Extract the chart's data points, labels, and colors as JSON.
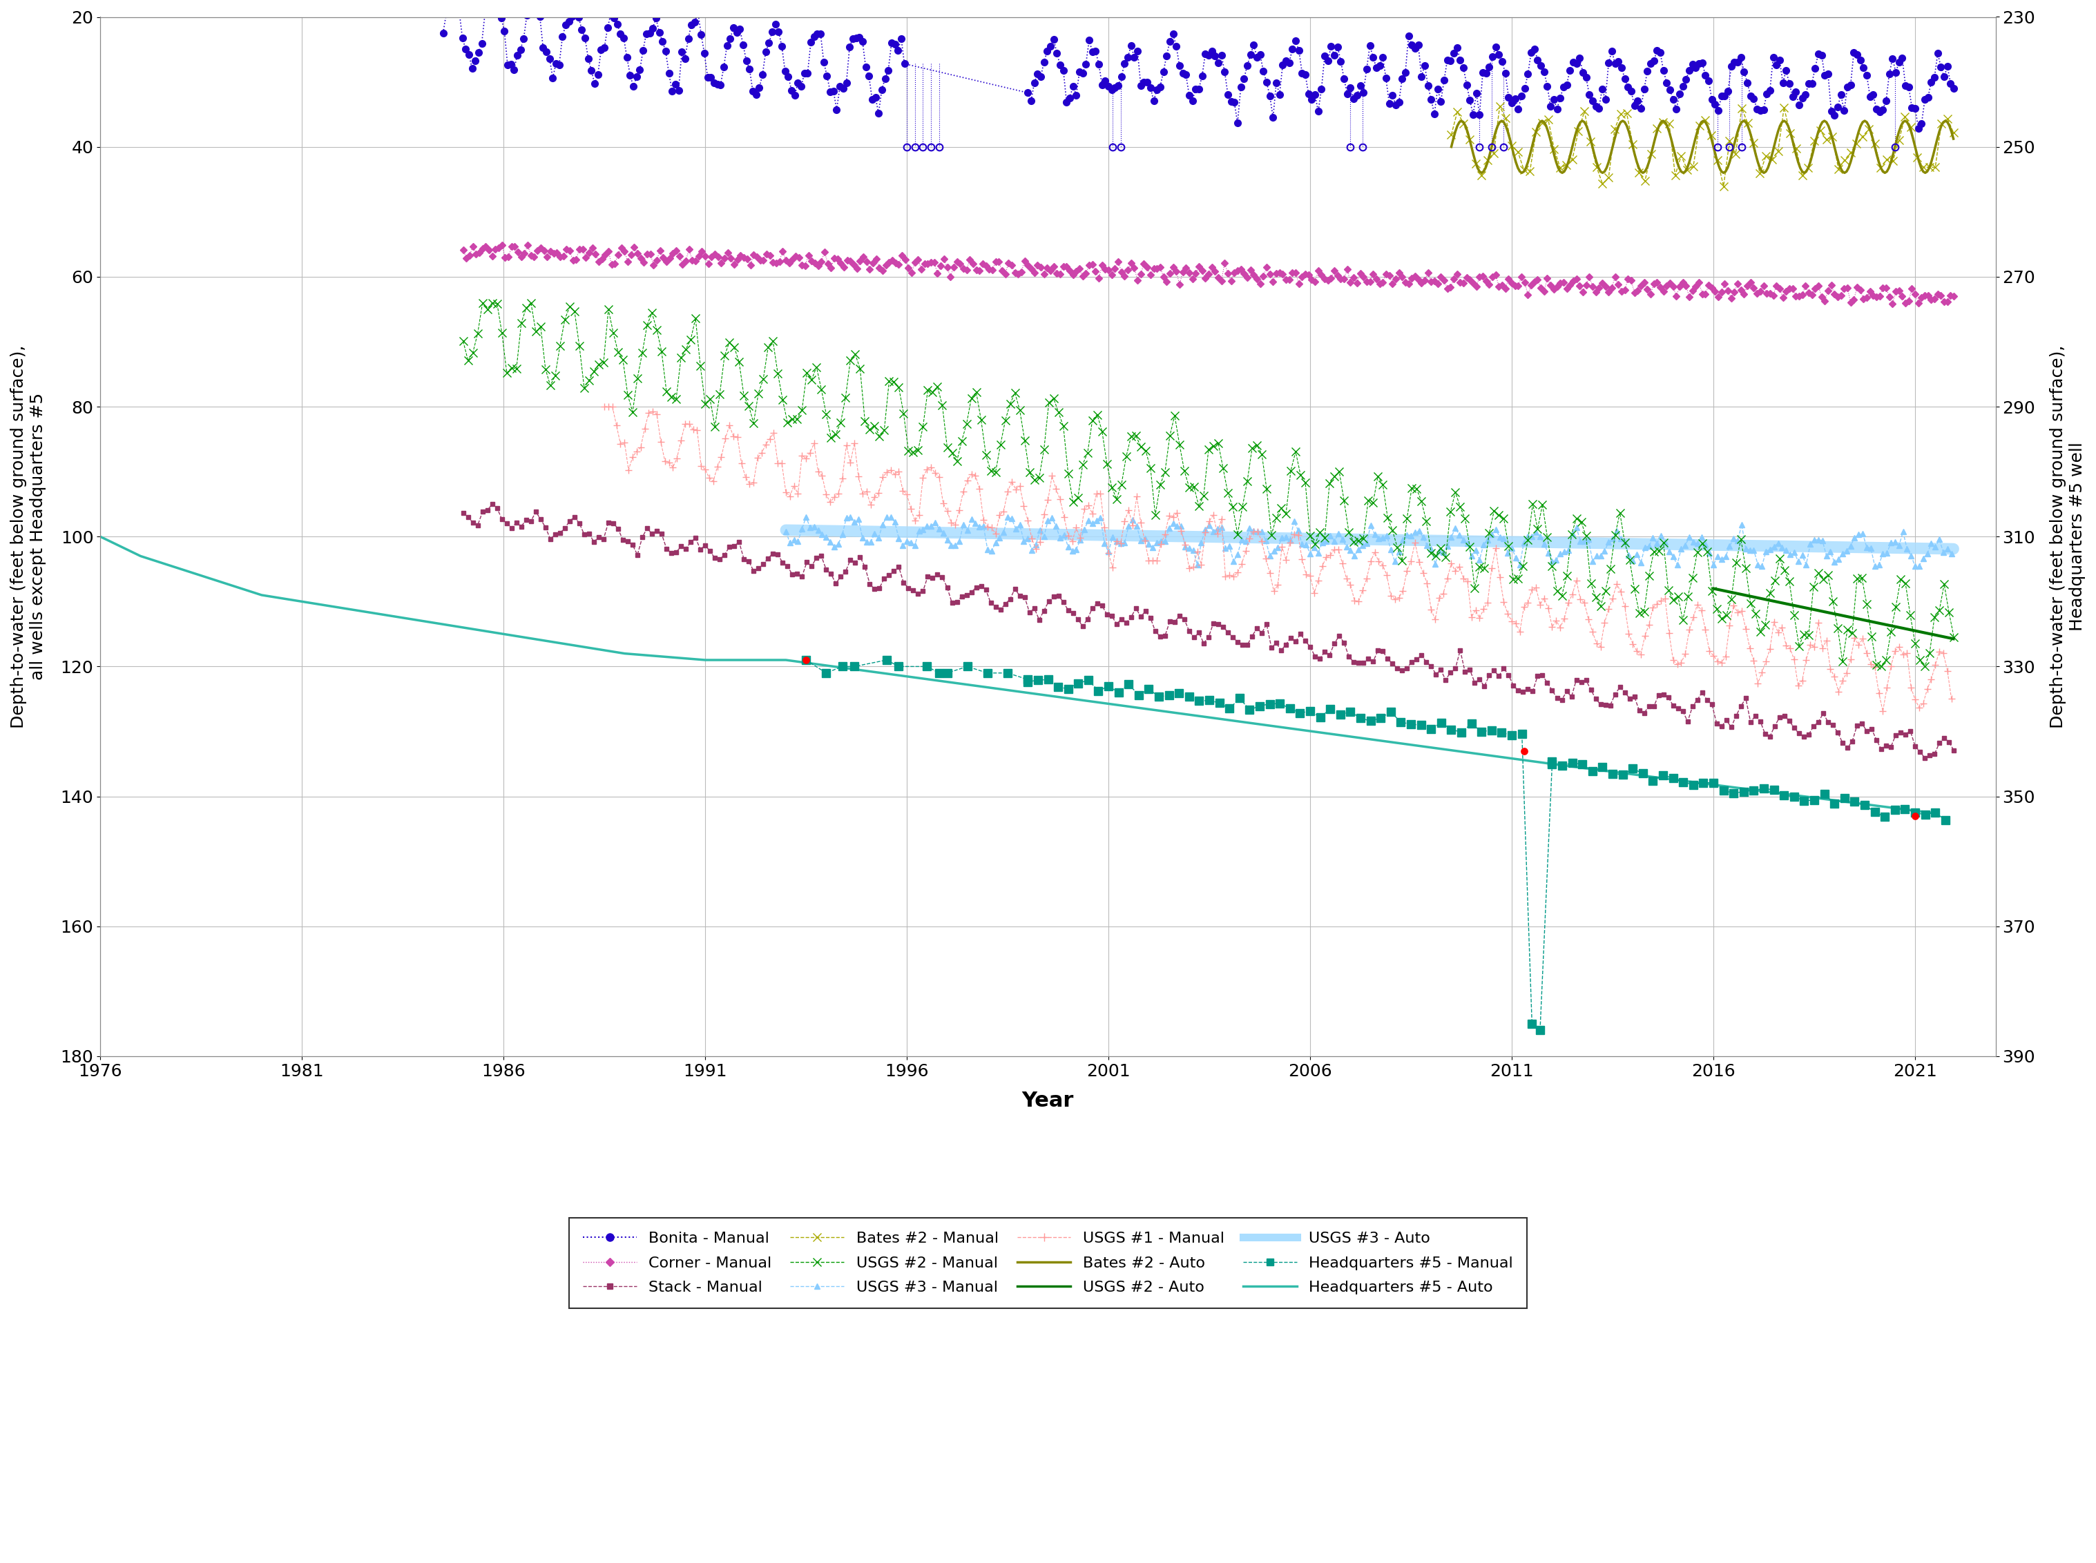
{
  "xlabel": "Year",
  "ylabel_left": "Depth-to-water (feet below ground surface),\nall wells except Headquarters #5",
  "ylabel_right": "Depth-to-water (feet below ground surface),\nHeadquarters #5 well",
  "xlim": [
    1976,
    2023
  ],
  "ylim_left": [
    20,
    180
  ],
  "ylim_right": [
    230,
    390
  ],
  "xticks": [
    1976,
    1981,
    1986,
    1991,
    1996,
    2001,
    2006,
    2011,
    2016,
    2021
  ],
  "yticks_left": [
    20,
    40,
    60,
    80,
    100,
    120,
    140,
    160,
    180
  ],
  "yticks_right": [
    230,
    250,
    270,
    290,
    310,
    330,
    350,
    370,
    390
  ],
  "background_color": "#ffffff",
  "grid_color": "#bbbbbb"
}
